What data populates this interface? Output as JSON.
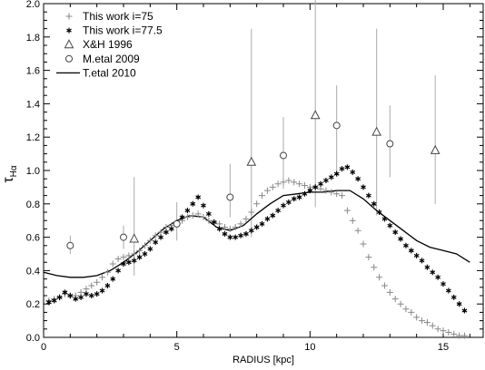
{
  "chart_data": {
    "type": "scatter",
    "xlabel": "RADIUS     [kpc]",
    "ylabel": "τ",
    "ylabel_sub": "Hα",
    "xlim": [
      0,
      16.5
    ],
    "ylim": [
      0,
      2.0
    ],
    "xticks": [
      "0",
      "5",
      "10",
      "15"
    ],
    "yticks": [
      "0.0",
      "0.2",
      "0.4",
      "0.6",
      "0.8",
      "1.0",
      "1.2",
      "1.4",
      "1.6",
      "1.8",
      "2.0"
    ],
    "legend_position": "top-left",
    "colors": {
      "plus": "#888888",
      "star": "#000000",
      "triangle": "#444444",
      "circle": "#444444",
      "line": "#000000",
      "errorbar": "#aaaaaa"
    },
    "series": [
      {
        "name": "This work i=75",
        "marker": "plus",
        "x": [
          0.2,
          0.4,
          0.6,
          0.8,
          1.0,
          1.2,
          1.4,
          1.6,
          1.8,
          2.0,
          2.2,
          2.4,
          2.6,
          2.8,
          3.0,
          3.2,
          3.4,
          3.6,
          3.8,
          4.0,
          4.2,
          4.4,
          4.6,
          4.8,
          5.0,
          5.2,
          5.4,
          5.6,
          5.8,
          6.0,
          6.2,
          6.4,
          6.6,
          6.8,
          7.0,
          7.2,
          7.4,
          7.6,
          7.8,
          8.0,
          8.2,
          8.4,
          8.6,
          8.8,
          9.0,
          9.2,
          9.4,
          9.6,
          9.8,
          10.0,
          10.2,
          10.4,
          10.6,
          10.8,
          11.0,
          11.2,
          11.4,
          11.6,
          11.8,
          12.0,
          12.2,
          12.4,
          12.6,
          12.8,
          13.0,
          13.2,
          13.4,
          13.6,
          13.8,
          14.0,
          14.2,
          14.4,
          14.6,
          14.8,
          15.0,
          15.2,
          15.4,
          15.6,
          15.8
        ],
        "y": [
          0.22,
          0.23,
          0.24,
          0.26,
          0.25,
          0.25,
          0.27,
          0.29,
          0.31,
          0.33,
          0.36,
          0.39,
          0.44,
          0.47,
          0.48,
          0.49,
          0.5,
          0.52,
          0.55,
          0.58,
          0.61,
          0.63,
          0.66,
          0.67,
          0.68,
          0.7,
          0.72,
          0.73,
          0.74,
          0.72,
          0.7,
          0.69,
          0.68,
          0.66,
          0.65,
          0.66,
          0.68,
          0.71,
          0.75,
          0.8,
          0.85,
          0.88,
          0.9,
          0.92,
          0.93,
          0.94,
          0.93,
          0.92,
          0.91,
          0.9,
          0.9,
          0.89,
          0.88,
          0.87,
          0.86,
          0.85,
          0.76,
          0.7,
          0.64,
          0.56,
          0.48,
          0.42,
          0.36,
          0.31,
          0.27,
          0.23,
          0.2,
          0.17,
          0.15,
          0.12,
          0.1,
          0.09,
          0.07,
          0.05,
          0.04,
          0.03,
          0.02,
          0.01,
          0.01
        ]
      },
      {
        "name": "This work i=77.5",
        "marker": "star",
        "x": [
          0.2,
          0.4,
          0.6,
          0.8,
          1.0,
          1.2,
          1.4,
          1.6,
          1.8,
          2.0,
          2.2,
          2.4,
          2.6,
          2.8,
          3.0,
          3.2,
          3.4,
          3.6,
          3.8,
          4.0,
          4.2,
          4.4,
          4.6,
          4.8,
          5.0,
          5.2,
          5.4,
          5.6,
          5.8,
          6.0,
          6.2,
          6.4,
          6.6,
          6.8,
          7.0,
          7.2,
          7.4,
          7.6,
          7.8,
          8.0,
          8.2,
          8.4,
          8.6,
          8.8,
          9.0,
          9.2,
          9.4,
          9.6,
          9.8,
          10.0,
          10.2,
          10.4,
          10.6,
          10.8,
          11.0,
          11.2,
          11.4,
          11.6,
          11.8,
          12.0,
          12.2,
          12.4,
          12.6,
          12.8,
          13.0,
          13.2,
          13.4,
          13.6,
          13.8,
          14.0,
          14.2,
          14.4,
          14.6,
          14.8,
          15.0,
          15.2,
          15.4,
          15.6,
          15.8
        ],
        "y": [
          0.21,
          0.22,
          0.24,
          0.27,
          0.25,
          0.23,
          0.24,
          0.26,
          0.25,
          0.26,
          0.28,
          0.31,
          0.35,
          0.4,
          0.44,
          0.45,
          0.46,
          0.48,
          0.5,
          0.53,
          0.57,
          0.6,
          0.63,
          0.65,
          0.68,
          0.72,
          0.76,
          0.8,
          0.84,
          0.79,
          0.74,
          0.69,
          0.65,
          0.62,
          0.6,
          0.6,
          0.61,
          0.62,
          0.64,
          0.66,
          0.68,
          0.71,
          0.73,
          0.76,
          0.79,
          0.81,
          0.83,
          0.84,
          0.86,
          0.88,
          0.9,
          0.92,
          0.94,
          0.96,
          0.98,
          1.01,
          1.02,
          0.99,
          0.95,
          0.9,
          0.85,
          0.8,
          0.75,
          0.71,
          0.67,
          0.63,
          0.59,
          0.55,
          0.52,
          0.49,
          0.46,
          0.42,
          0.39,
          0.36,
          0.32,
          0.28,
          0.24,
          0.2,
          0.16
        ]
      },
      {
        "name": "X&H  1996",
        "marker": "triangle",
        "x": [
          3.4,
          7.8,
          10.2,
          12.5,
          14.7
        ],
        "y": [
          0.59,
          1.05,
          1.33,
          1.23,
          1.12
        ],
        "err_low": [
          0.22,
          0.45,
          0.55,
          0.5,
          0.32
        ],
        "err_high": [
          0.37,
          0.8,
          0.9,
          0.62,
          0.45
        ]
      },
      {
        "name": "M.etal 2009",
        "marker": "circle",
        "x": [
          1.0,
          3.0,
          5.0,
          7.0,
          9.0,
          11.0,
          13.0
        ],
        "y": [
          0.55,
          0.6,
          0.68,
          0.84,
          1.09,
          1.27,
          1.16
        ],
        "err_low": [
          0.05,
          0.07,
          0.1,
          0.12,
          0.2,
          0.28,
          0.2
        ],
        "err_high": [
          0.06,
          0.07,
          0.13,
          0.2,
          0.23,
          0.24,
          0.23
        ]
      },
      {
        "name": "T.etal 2010",
        "marker": "line",
        "x": [
          0,
          0.5,
          1.0,
          1.5,
          2.0,
          2.5,
          3.0,
          3.5,
          4.0,
          4.5,
          5.0,
          5.5,
          6.0,
          6.5,
          7.0,
          7.5,
          8.0,
          8.5,
          9.0,
          9.5,
          10.0,
          10.5,
          11.0,
          11.5,
          12.0,
          12.5,
          13.0,
          13.5,
          14.0,
          14.5,
          15.0,
          15.5,
          16.0
        ],
        "y": [
          0.39,
          0.37,
          0.36,
          0.36,
          0.37,
          0.4,
          0.45,
          0.51,
          0.58,
          0.65,
          0.7,
          0.73,
          0.72,
          0.66,
          0.64,
          0.67,
          0.74,
          0.8,
          0.85,
          0.86,
          0.87,
          0.87,
          0.88,
          0.88,
          0.83,
          0.76,
          0.7,
          0.64,
          0.58,
          0.54,
          0.52,
          0.5,
          0.45
        ]
      }
    ]
  }
}
